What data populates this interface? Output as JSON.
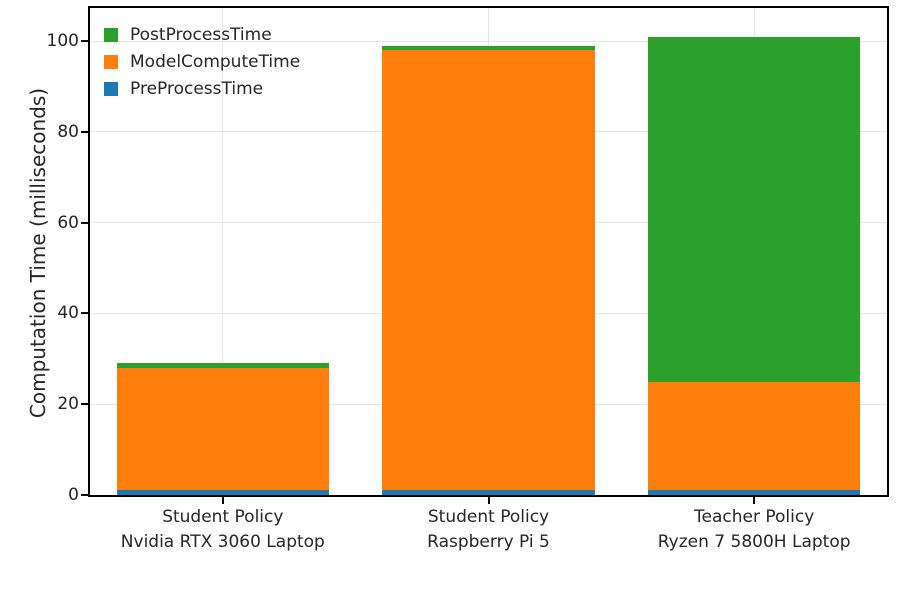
{
  "chart_data": {
    "type": "bar",
    "stacked": true,
    "title": "",
    "xlabel": "",
    "ylabel": "Computation Time (milliseconds)",
    "categories": [
      {
        "line1": "Student Policy",
        "line2": "Nvidia RTX 3060 Laptop"
      },
      {
        "line1": "Student Policy",
        "line2": "Raspberry Pi 5"
      },
      {
        "line1": "Teacher Policy",
        "line2": "Ryzen 7 5800H Laptop"
      }
    ],
    "series": [
      {
        "name": "PreProcessTime",
        "color": "#1f77b4",
        "values": [
          1,
          1,
          1
        ]
      },
      {
        "name": "ModelComputeTime",
        "color": "#ff7f0e",
        "values": [
          27,
          97,
          24
        ]
      },
      {
        "name": "PostProcessTime",
        "color": "#2ca02c",
        "values": [
          1,
          1,
          76
        ]
      }
    ],
    "stack_totals": [
      29,
      99,
      101
    ],
    "yticks": [
      0,
      20,
      40,
      60,
      80,
      100
    ],
    "ylim": [
      0,
      107.3
    ],
    "grid": true,
    "bar_width_fraction": 0.8,
    "legend": {
      "position": "upper-left",
      "entries_top_to_bottom": [
        "PostProcessTime",
        "ModelComputeTime",
        "PreProcessTime"
      ]
    },
    "colors": {
      "grid": "#e6e6e6",
      "axis": "#000000",
      "text": "#262626",
      "background": "#ffffff"
    }
  }
}
